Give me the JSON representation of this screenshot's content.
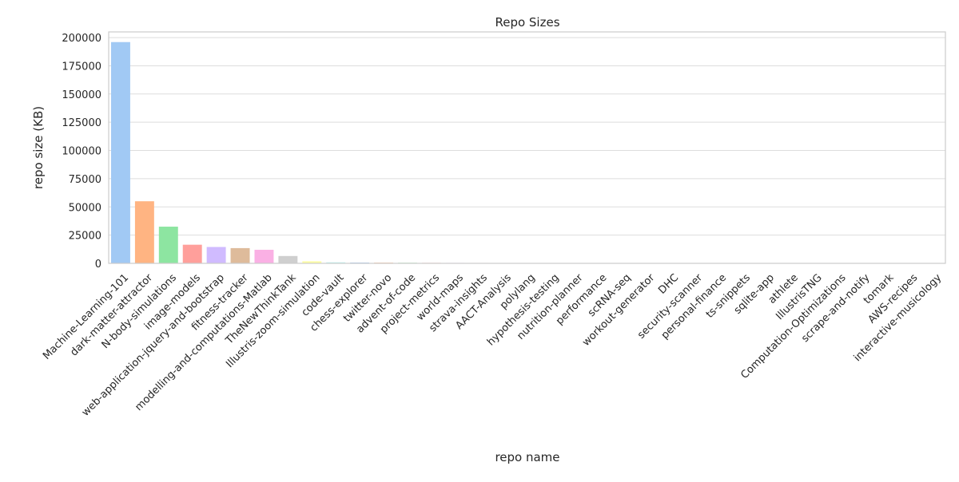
{
  "chart_data": {
    "type": "bar",
    "title": "Repo Sizes",
    "xlabel": "repo name",
    "ylabel": "repo size (KB)",
    "ylim": [
      0,
      205000
    ],
    "yticks": [
      0,
      25000,
      50000,
      75000,
      100000,
      125000,
      150000,
      175000,
      200000
    ],
    "grid": true,
    "categories": [
      "Machine-Learning-101",
      "dark-matter-attractor",
      "N-body-simulations",
      "image-models",
      "web-application-jquery-and-bootstrap",
      "fitness-tracker",
      "modelling-and-computations-Matlab",
      "TheNewThinkTank",
      "Illustris-zoom-simulation",
      "code-vault",
      "chess-explorer",
      "twitter-novo",
      "advent-of-code",
      "project-metrics",
      "world-maps",
      "strava-insights",
      "AACT-Analysis",
      "polylang",
      "hypothesis-testing",
      "nutrition-planner",
      "performance",
      "scRNA-seq",
      "workout-generator",
      "DHC",
      "security-scanner",
      "personal-finance",
      "ts-snippets",
      "sqlite-app",
      "athlete",
      "IllustrisTNG",
      "Computation-Optimizations",
      "scrape-and-notify",
      "tomark",
      "AWS-recipes",
      "interactive-musicology"
    ],
    "values": [
      196000,
      55000,
      32500,
      16500,
      14500,
      13500,
      12000,
      6500,
      1800,
      900,
      700,
      600,
      500,
      450,
      400,
      380,
      350,
      320,
      300,
      280,
      260,
      240,
      220,
      200,
      190,
      180,
      170,
      160,
      150,
      140,
      130,
      120,
      110,
      100,
      90
    ],
    "colors": [
      "#a1c9f4",
      "#ffb482",
      "#8de5a1",
      "#ff9f9b",
      "#d0bbff",
      "#debb9b",
      "#fab0e4",
      "#cfcfcf",
      "#fffea3",
      "#b9f2f0"
    ]
  }
}
